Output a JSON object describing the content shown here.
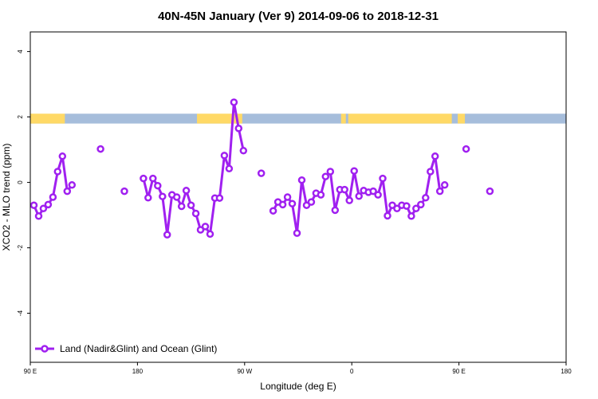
{
  "chart_data": {
    "type": "line",
    "title": "40N-45N January (Ver 9)   2014-09-06 to 2018-12-31",
    "xlabel": "Longitude (deg E)",
    "ylabel": "XCO2 - MLO trend (ppm)",
    "xlim": [
      90,
      540
    ],
    "ylim": [
      -5.5,
      4.6
    ],
    "x_ticks": [
      {
        "value": 90,
        "label": "90 E"
      },
      {
        "value": 180,
        "label": "180"
      },
      {
        "value": 270,
        "label": "90 W"
      },
      {
        "value": 360,
        "label": "0"
      },
      {
        "value": 450,
        "label": "90 E"
      },
      {
        "value": 540,
        "label": "180"
      }
    ],
    "y_ticks": [
      {
        "value": 4,
        "label": "4"
      },
      {
        "value": 2,
        "label": "2"
      },
      {
        "value": 0,
        "label": "0"
      },
      {
        "value": -2,
        "label": "-2"
      },
      {
        "value": -4,
        "label": "-4"
      }
    ],
    "series": [
      {
        "name": "Land (Nadir&Glint) and Ocean (Glint)",
        "color": "#A020F0",
        "segments": [
          [
            [
              93,
              -0.7
            ],
            [
              97,
              -1.03
            ],
            [
              101,
              -0.8
            ],
            [
              105,
              -0.68
            ],
            [
              109,
              -0.45
            ],
            [
              113,
              0.33
            ],
            [
              117,
              0.8
            ],
            [
              121,
              -0.27
            ],
            [
              125,
              -0.08
            ]
          ],
          [
            [
              149,
              1.02
            ]
          ],
          [
            [
              169,
              -0.27
            ]
          ],
          [
            [
              185,
              0.12
            ],
            [
              189,
              -0.47
            ],
            [
              193,
              0.12
            ],
            [
              197,
              -0.1
            ],
            [
              201,
              -0.43
            ],
            [
              205,
              -1.6
            ],
            [
              209,
              -0.38
            ],
            [
              213,
              -0.45
            ],
            [
              217,
              -0.73
            ],
            [
              221,
              -0.25
            ],
            [
              225,
              -0.7
            ],
            [
              229,
              -0.95
            ],
            [
              233,
              -1.45
            ],
            [
              237,
              -1.35
            ],
            [
              241,
              -1.58
            ],
            [
              245,
              -0.48
            ],
            [
              249,
              -0.48
            ],
            [
              253,
              0.82
            ],
            [
              257,
              0.42
            ],
            [
              261,
              2.45
            ],
            [
              265,
              1.65
            ],
            [
              269,
              0.97
            ]
          ]
        ],
        "points_isolated": [
          [
            284,
            0.28
          ]
        ],
        "segments_2": [
          [
            [
              294,
              -0.87
            ],
            [
              298,
              -0.6
            ],
            [
              302,
              -0.68
            ],
            [
              306,
              -0.45
            ],
            [
              310,
              -0.65
            ],
            [
              314,
              -1.55
            ],
            [
              318,
              0.07
            ],
            [
              322,
              -0.7
            ],
            [
              326,
              -0.6
            ],
            [
              330,
              -0.33
            ],
            [
              334,
              -0.38
            ],
            [
              338,
              0.18
            ],
            [
              342,
              0.33
            ],
            [
              346,
              -0.85
            ],
            [
              350,
              -0.22
            ],
            [
              354,
              -0.22
            ],
            [
              358,
              -0.55
            ],
            [
              362,
              0.35
            ],
            [
              366,
              -0.42
            ],
            [
              370,
              -0.25
            ],
            [
              374,
              -0.3
            ],
            [
              378,
              -0.27
            ],
            [
              382,
              -0.38
            ],
            [
              386,
              0.12
            ],
            [
              390,
              -1.02
            ],
            [
              394,
              -0.7
            ],
            [
              398,
              -0.8
            ],
            [
              402,
              -0.7
            ],
            [
              406,
              -0.72
            ],
            [
              410,
              -1.03
            ],
            [
              414,
              -0.8
            ],
            [
              418,
              -0.68
            ],
            [
              422,
              -0.47
            ],
            [
              426,
              0.33
            ],
            [
              430,
              0.8
            ],
            [
              434,
              -0.27
            ],
            [
              438,
              -0.08
            ]
          ]
        ],
        "points_isolated_2": [
          [
            456,
            1.02
          ],
          [
            476,
            -0.27
          ]
        ]
      }
    ],
    "surface_strip": {
      "y_range": [
        1.8,
        2.1
      ],
      "land_color": "#FFD966",
      "ocean_color": "#A6BDDB",
      "land_spans": [
        [
          90,
          119
        ],
        [
          230,
          268
        ],
        [
          351,
          355
        ],
        [
          357,
          444
        ],
        [
          449,
          455
        ]
      ]
    },
    "legend": {
      "position": "bottom-left",
      "label": "Land (Nadir&Glint) and Ocean (Glint)"
    },
    "grid": false
  }
}
